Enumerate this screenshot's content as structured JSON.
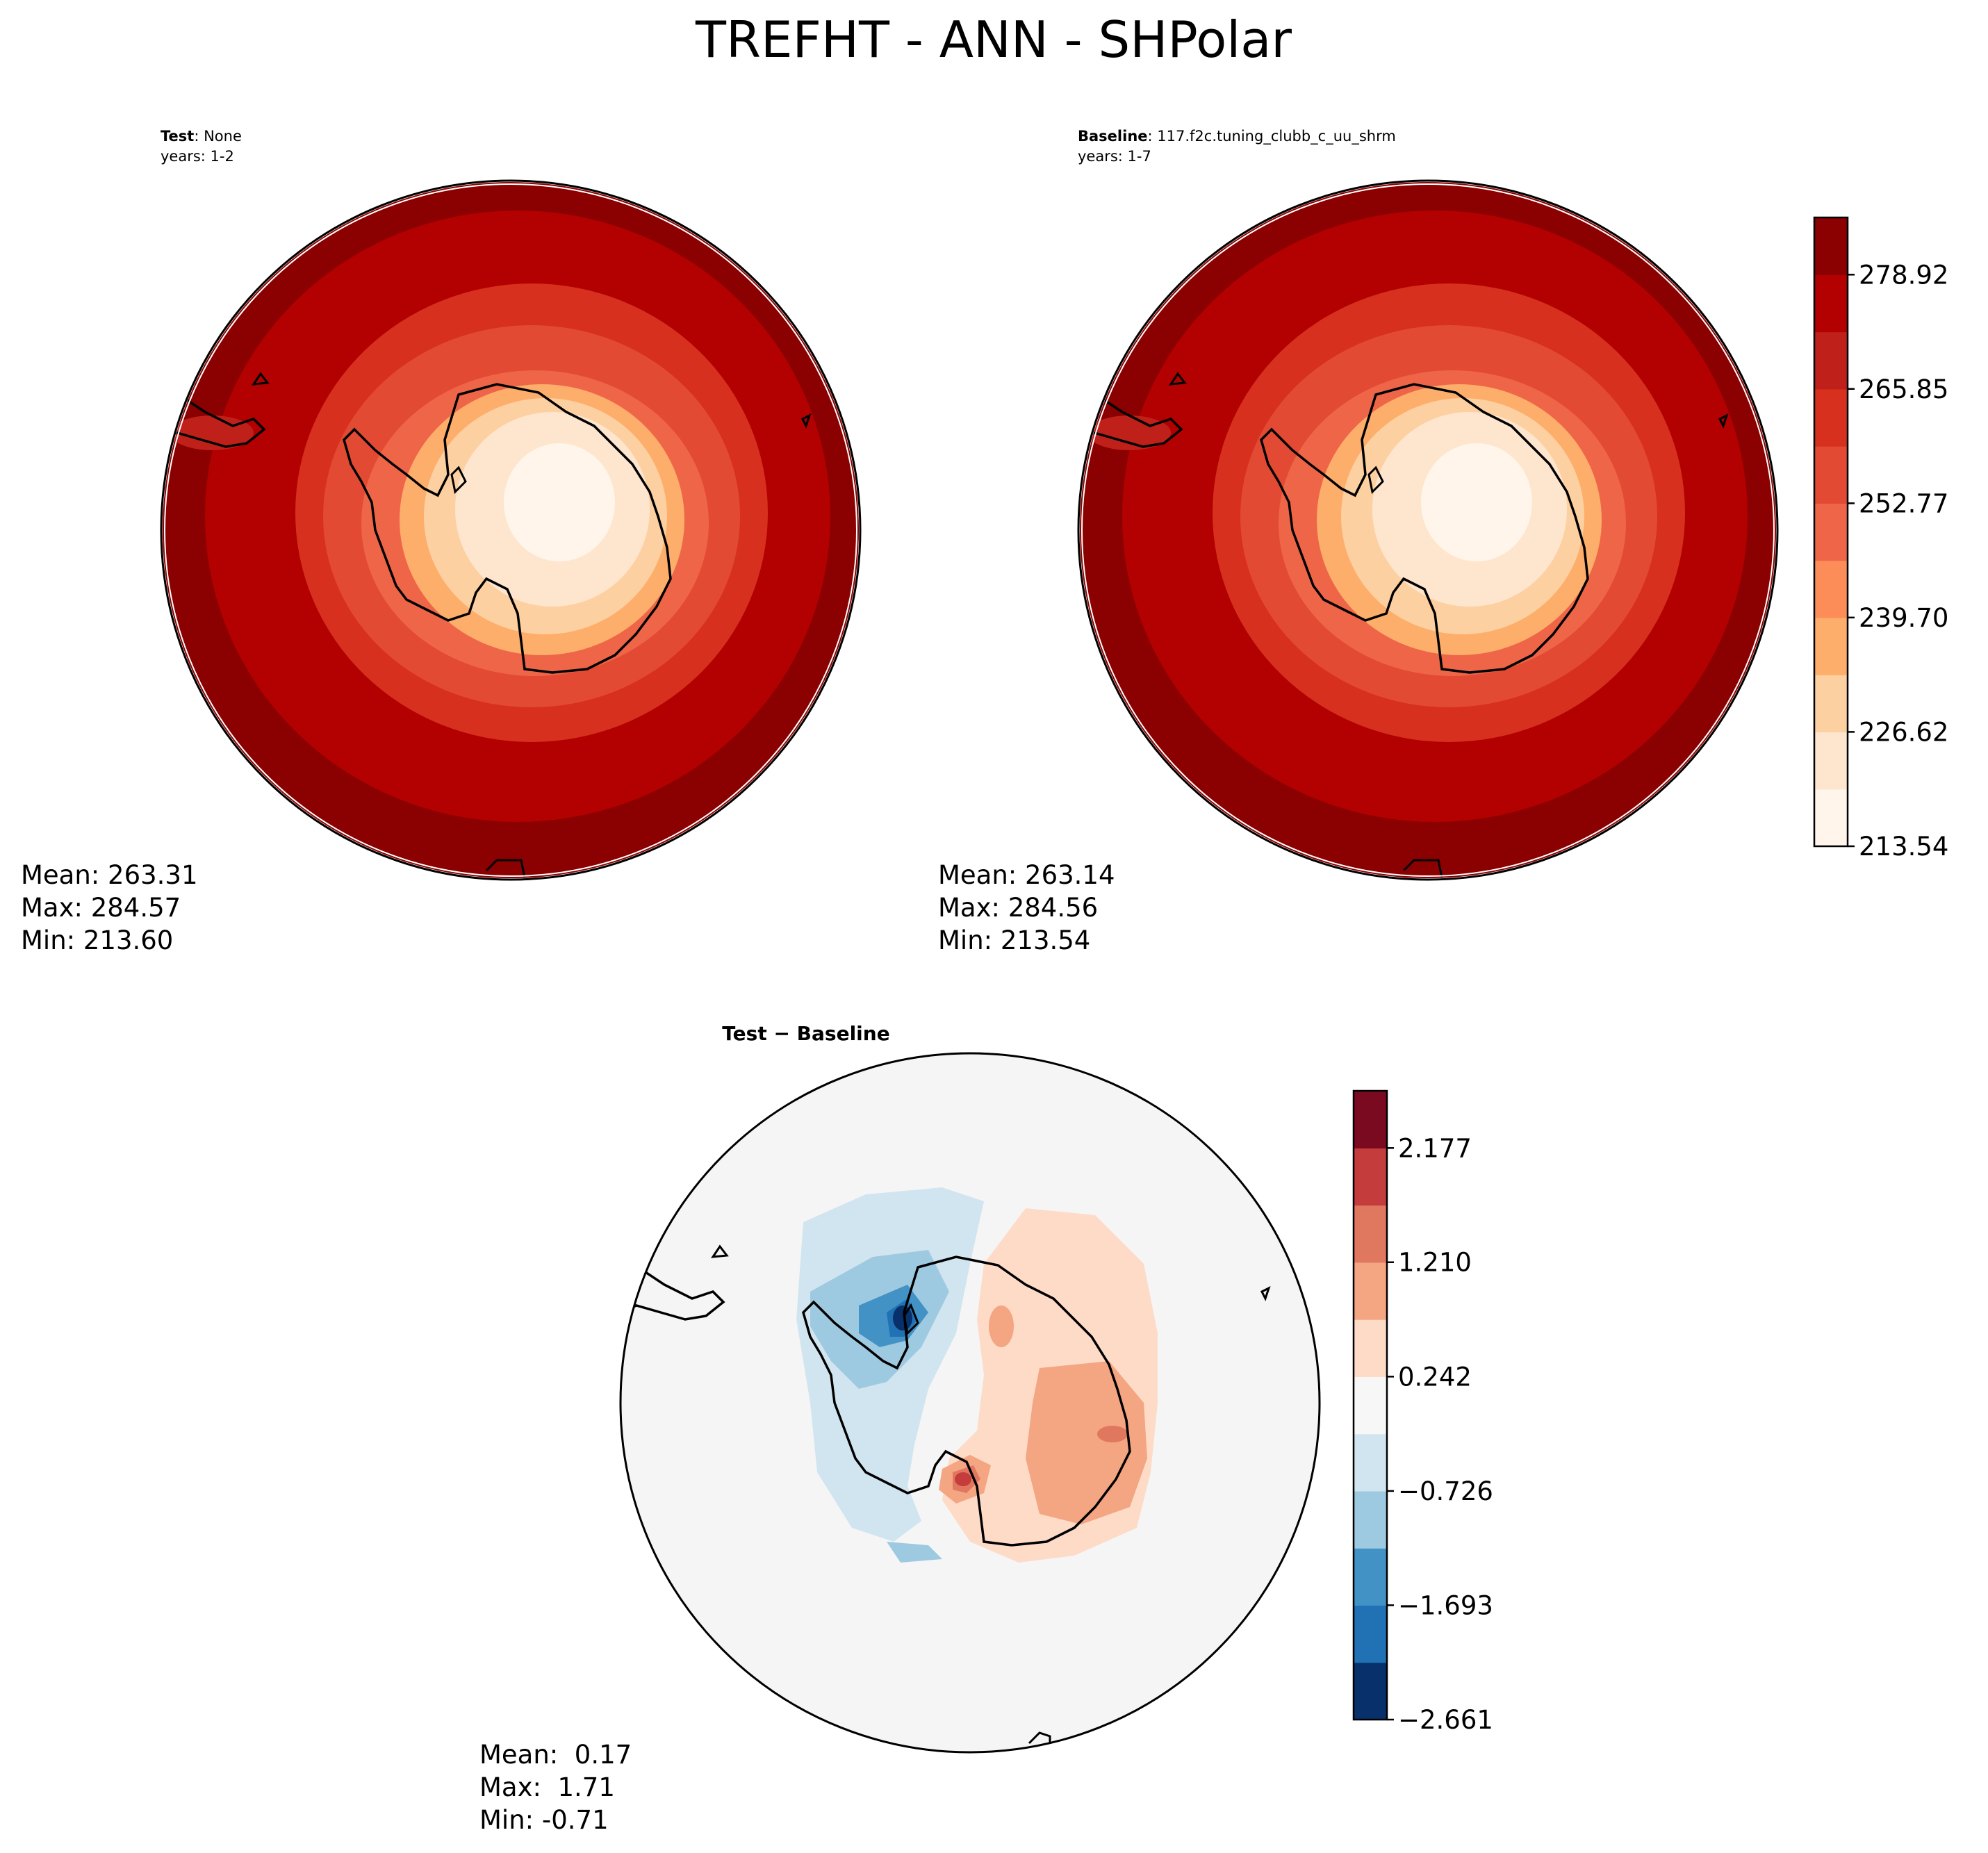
{
  "title": "TREFHT - ANN - SHPolar",
  "panels": {
    "test": {
      "label_bold": "Test",
      "label_rest": ": None",
      "years": "years: 1-2",
      "stats": {
        "mean": "Mean: 263.31",
        "max": "Max: 284.57",
        "min": "Min: 213.60"
      }
    },
    "baseline": {
      "label_bold": "Baseline",
      "label_rest": ": 117.f2c.tuning_clubb_c_uu_shrm",
      "years": "years: 1-7",
      "stats": {
        "mean": "Mean: 263.14",
        "max": "Max: 284.56",
        "min": "Min: 213.54"
      }
    },
    "diff": {
      "title": "Test − Baseline",
      "stats": {
        "mean": "Mean:  0.17",
        "max": "Max:  1.71",
        "min": "Min: -0.71"
      }
    }
  },
  "colorbars": {
    "main": {
      "ticks": [
        "278.92",
        "265.85",
        "252.77",
        "239.70",
        "226.62",
        "213.54"
      ],
      "tick_values": [
        278.92,
        265.85,
        252.77,
        239.7,
        226.62,
        213.54
      ],
      "range": [
        213.54,
        285.46
      ],
      "levels": 11,
      "colors": [
        "#fff5eb",
        "#fee6ce",
        "#fdd0a2",
        "#fdae6b",
        "#fc8d59",
        "#ef6548",
        "#e34a33",
        "#d7301f",
        "#c0201a",
        "#b30000",
        "#8b0000"
      ]
    },
    "diff": {
      "ticks": [
        "2.177",
        "1.210",
        "0.242",
        "−0.726",
        "−1.693",
        "−2.661"
      ],
      "tick_values": [
        2.177,
        1.21,
        0.242,
        -0.726,
        -1.693,
        -2.661
      ],
      "range": [
        -2.661,
        2.661
      ],
      "levels": 11,
      "colors": [
        "#08306b",
        "#2171b5",
        "#4292c6",
        "#9ecae1",
        "#d1e5f0",
        "#f7f7f7",
        "#fddbc7",
        "#f4a582",
        "#e07860",
        "#c43c3c",
        "#7a0a1f"
      ]
    }
  },
  "chart_data": {
    "type": "heatmap",
    "variable": "TREFHT",
    "season": "ANN",
    "region": "SHPolar",
    "maps": [
      {
        "name": "Test",
        "mean": 263.31,
        "max": 284.57,
        "min": 213.6
      },
      {
        "name": "Baseline",
        "mean": 263.14,
        "max": 284.56,
        "min": 213.54
      },
      {
        "name": "Test − Baseline",
        "mean": 0.17,
        "max": 1.71,
        "min": -0.71
      }
    ]
  }
}
